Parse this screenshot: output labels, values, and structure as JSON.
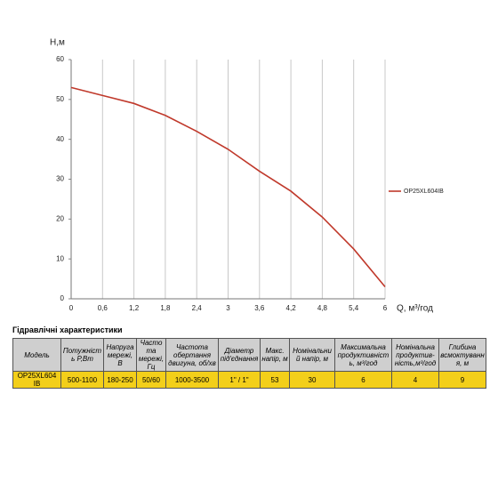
{
  "chart_data": {
    "type": "line",
    "y_label": "Н,м",
    "x_label": "Q, м³/год",
    "x": [
      0,
      0.6,
      1.2,
      1.8,
      2.4,
      3,
      3.6,
      4.2,
      4.8,
      5.4,
      6
    ],
    "series": [
      {
        "name": "OP25XL604IB",
        "color": "#c0392b",
        "values": [
          53,
          51,
          49,
          46,
          42,
          37.5,
          32,
          27,
          20.5,
          12.5,
          3
        ]
      }
    ],
    "xlim": [
      0,
      6
    ],
    "xticks": [
      0,
      {
        "value": 0.6,
        "label": "0,6"
      },
      {
        "value": 1.2,
        "label": "1,2"
      },
      {
        "value": 1.8,
        "label": "1,8"
      },
      {
        "value": 2.4,
        "label": "2,4"
      },
      3,
      {
        "value": 3.6,
        "label": "3,6"
      },
      {
        "value": 4.2,
        "label": "4,2"
      },
      {
        "value": 4.8,
        "label": "4,8"
      },
      {
        "value": 5.4,
        "label": "5,4"
      },
      6
    ],
    "ylim": [
      0,
      60
    ],
    "yticks": [
      0,
      10,
      20,
      30,
      40,
      50,
      60
    ],
    "grid": true,
    "legend": "right"
  },
  "table": {
    "title": "Гідравлічні характеристики",
    "header": [
      "Модель",
      "Потужність Р,Вт",
      "Напруга мережі, В",
      "Частота мережі, Гц",
      "Частота обертання двигуна, об/хв",
      "Діаметр під'єднання",
      "Макс. напір, м",
      "Номінальний напір, м",
      "Максимальна продуктивність, м³/год",
      "Номінальна продуктив-ність,м³/год",
      "Глибина всмоктування, м"
    ],
    "rows": [
      [
        "OP25XL604 IB",
        "500-1100",
        "180-250",
        "50/60",
        "1000-3500",
        "1\" / 1\"",
        "53",
        "30",
        "6",
        "4",
        "9"
      ]
    ]
  }
}
